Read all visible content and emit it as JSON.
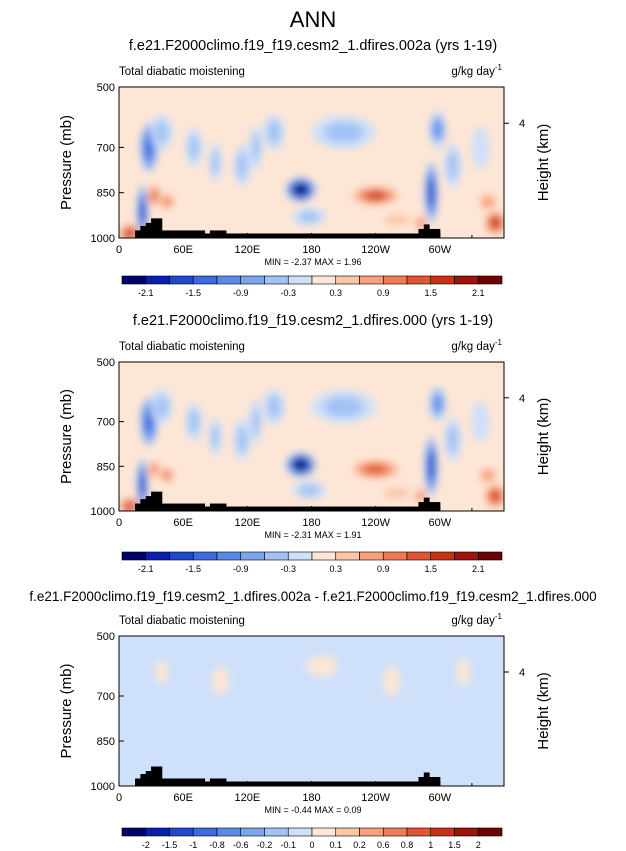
{
  "figure": {
    "title": "ANN",
    "colors": {
      "ink": "#000000",
      "background": "#ffffff",
      "terrain": "#000000"
    }
  },
  "chart_data": [
    {
      "type": "heatmap",
      "title": "f.e21.F2000climo.f19_f19.cesm2_1.dfires.002a (yrs 1-19)",
      "left_label": "Total diabatic moistening",
      "units_label": "g/kg day",
      "units_exponent": "-1",
      "xlabel": "",
      "ylabel": "Pressure (mb)",
      "right_ylabel": "Height (km)",
      "x_ticks": [
        "0",
        "60E",
        "120E",
        "180",
        "120W",
        "60W"
      ],
      "x_tick_lons": [
        0,
        60,
        120,
        180,
        240,
        300
      ],
      "xlim": [
        0,
        360
      ],
      "y_ticks": [
        "500",
        "700",
        "850",
        "1000"
      ],
      "y_tick_values": [
        500,
        700,
        850,
        1000
      ],
      "ylim": [
        500,
        1000
      ],
      "right_ticks": [
        "4"
      ],
      "right_tick_pressure": 620,
      "min_label": "MIN = ",
      "min_value": "-2.37",
      "max_label": "MAX = ",
      "max_value": "1.96",
      "colorbar": {
        "labels": [
          "-2.1",
          "-1.5",
          "-0.9",
          "-0.3",
          "0.3",
          "0.9",
          "1.5",
          "2.1"
        ],
        "levels": [
          -2.1,
          -1.8,
          -1.5,
          -1.2,
          -0.9,
          -0.6,
          -0.3,
          0,
          0.3,
          0.6,
          0.9,
          1.2,
          1.5,
          1.8,
          2.1
        ],
        "colors": [
          "#02006b",
          "#0a1fae",
          "#1f49cc",
          "#3a6be0",
          "#5a8ae8",
          "#7aa6ee",
          "#a2c2f4",
          "#cee0fa",
          "#fde6d6",
          "#fcc6a8",
          "#f8a07c",
          "#f07a56",
          "#e25432",
          "#c93117",
          "#9f130b",
          "#6e0202"
        ]
      },
      "features": [
        {
          "lon": 10,
          "p": 985,
          "value": 1.6,
          "lon_width": 10,
          "p_width": 60
        },
        {
          "lon": 22,
          "p": 910,
          "value": -1.8,
          "lon_width": 5,
          "p_width": 170
        },
        {
          "lon": 28,
          "p": 700,
          "value": -1.5,
          "lon_width": 8,
          "p_width": 160
        },
        {
          "lon": 33,
          "p": 860,
          "value": 1.2,
          "lon_width": 6,
          "p_width": 70
        },
        {
          "lon": 45,
          "p": 880,
          "value": 1.0,
          "lon_width": 8,
          "p_width": 60
        },
        {
          "lon": 40,
          "p": 650,
          "value": -0.6,
          "lon_width": 10,
          "p_width": 120
        },
        {
          "lon": 70,
          "p": 700,
          "value": -0.6,
          "lon_width": 8,
          "p_width": 130
        },
        {
          "lon": 90,
          "p": 750,
          "value": -0.5,
          "lon_width": 6,
          "p_width": 130
        },
        {
          "lon": 115,
          "p": 760,
          "value": -0.6,
          "lon_width": 8,
          "p_width": 140
        },
        {
          "lon": 128,
          "p": 700,
          "value": -0.5,
          "lon_width": 6,
          "p_width": 150
        },
        {
          "lon": 145,
          "p": 650,
          "value": -0.6,
          "lon_width": 10,
          "p_width": 120
        },
        {
          "lon": 170,
          "p": 840,
          "value": -2.3,
          "lon_width": 14,
          "p_width": 80
        },
        {
          "lon": 178,
          "p": 930,
          "value": -0.5,
          "lon_width": 16,
          "p_width": 60
        },
        {
          "lon": 210,
          "p": 650,
          "value": -0.4,
          "lon_width": 30,
          "p_width": 110
        },
        {
          "lon": 240,
          "p": 860,
          "value": 1.5,
          "lon_width": 22,
          "p_width": 60
        },
        {
          "lon": 260,
          "p": 940,
          "value": 0.4,
          "lon_width": 20,
          "p_width": 60
        },
        {
          "lon": 282,
          "p": 950,
          "value": 1.0,
          "lon_width": 6,
          "p_width": 60
        },
        {
          "lon": 292,
          "p": 850,
          "value": -1.8,
          "lon_width": 6,
          "p_width": 200
        },
        {
          "lon": 298,
          "p": 640,
          "value": -1.2,
          "lon_width": 8,
          "p_width": 120
        },
        {
          "lon": 312,
          "p": 760,
          "value": -0.5,
          "lon_width": 8,
          "p_width": 150
        },
        {
          "lon": 338,
          "p": 700,
          "value": -0.3,
          "lon_width": 8,
          "p_width": 140
        },
        {
          "lon": 352,
          "p": 950,
          "value": 1.6,
          "lon_width": 10,
          "p_width": 80
        },
        {
          "lon": 345,
          "p": 880,
          "value": 0.8,
          "lon_width": 10,
          "p_width": 60
        }
      ],
      "terrain": [
        [
          15,
          975
        ],
        [
          20,
          960
        ],
        [
          25,
          950
        ],
        [
          30,
          935
        ],
        [
          35,
          935
        ],
        [
          40,
          975
        ],
        [
          80,
          985
        ],
        [
          85,
          975
        ],
        [
          95,
          975
        ],
        [
          100,
          985
        ],
        [
          280,
          970
        ],
        [
          285,
          955
        ],
        [
          290,
          970
        ],
        [
          300,
          985
        ]
      ]
    },
    {
      "type": "heatmap",
      "title": "f.e21.F2000climo.f19_f19.cesm2_1.dfires.000 (yrs 1-19)",
      "left_label": "Total diabatic moistening",
      "units_label": "g/kg day",
      "units_exponent": "-1",
      "xlabel": "",
      "ylabel": "Pressure (mb)",
      "right_ylabel": "Height (km)",
      "x_ticks": [
        "0",
        "60E",
        "120E",
        "180",
        "120W",
        "60W"
      ],
      "x_tick_lons": [
        0,
        60,
        120,
        180,
        240,
        300
      ],
      "xlim": [
        0,
        360
      ],
      "y_ticks": [
        "500",
        "700",
        "850",
        "1000"
      ],
      "y_tick_values": [
        500,
        700,
        850,
        1000
      ],
      "ylim": [
        500,
        1000
      ],
      "right_ticks": [
        "4"
      ],
      "right_tick_pressure": 620,
      "min_label": "MIN = ",
      "min_value": "-2.31",
      "max_label": "MAX = ",
      "max_value": "1.91",
      "colorbar": {
        "labels": [
          "-2.1",
          "-1.5",
          "-0.9",
          "-0.3",
          "0.3",
          "0.9",
          "1.5",
          "2.1"
        ],
        "levels": [
          -2.1,
          -1.8,
          -1.5,
          -1.2,
          -0.9,
          -0.6,
          -0.3,
          0,
          0.3,
          0.6,
          0.9,
          1.2,
          1.5,
          1.8,
          2.1
        ],
        "colors": [
          "#02006b",
          "#0a1fae",
          "#1f49cc",
          "#3a6be0",
          "#5a8ae8",
          "#7aa6ee",
          "#a2c2f4",
          "#cee0fa",
          "#fde6d6",
          "#fcc6a8",
          "#f8a07c",
          "#f07a56",
          "#e25432",
          "#c93117",
          "#9f130b",
          "#6e0202"
        ]
      },
      "features": [
        {
          "lon": 10,
          "p": 985,
          "value": 1.5,
          "lon_width": 10,
          "p_width": 60
        },
        {
          "lon": 22,
          "p": 910,
          "value": -1.7,
          "lon_width": 5,
          "p_width": 170
        },
        {
          "lon": 28,
          "p": 700,
          "value": -1.5,
          "lon_width": 8,
          "p_width": 160
        },
        {
          "lon": 33,
          "p": 860,
          "value": 1.1,
          "lon_width": 6,
          "p_width": 70
        },
        {
          "lon": 45,
          "p": 880,
          "value": 0.9,
          "lon_width": 8,
          "p_width": 60
        },
        {
          "lon": 40,
          "p": 650,
          "value": -0.6,
          "lon_width": 10,
          "p_width": 120
        },
        {
          "lon": 70,
          "p": 700,
          "value": -0.6,
          "lon_width": 8,
          "p_width": 130
        },
        {
          "lon": 90,
          "p": 750,
          "value": -0.5,
          "lon_width": 6,
          "p_width": 130
        },
        {
          "lon": 115,
          "p": 760,
          "value": -0.6,
          "lon_width": 8,
          "p_width": 140
        },
        {
          "lon": 128,
          "p": 700,
          "value": -0.5,
          "lon_width": 6,
          "p_width": 150
        },
        {
          "lon": 145,
          "p": 650,
          "value": -0.6,
          "lon_width": 10,
          "p_width": 120
        },
        {
          "lon": 170,
          "p": 845,
          "value": -2.2,
          "lon_width": 14,
          "p_width": 80
        },
        {
          "lon": 178,
          "p": 930,
          "value": -0.5,
          "lon_width": 16,
          "p_width": 60
        },
        {
          "lon": 210,
          "p": 650,
          "value": -0.4,
          "lon_width": 30,
          "p_width": 110
        },
        {
          "lon": 240,
          "p": 860,
          "value": 1.4,
          "lon_width": 22,
          "p_width": 60
        },
        {
          "lon": 260,
          "p": 940,
          "value": 0.4,
          "lon_width": 20,
          "p_width": 60
        },
        {
          "lon": 282,
          "p": 950,
          "value": 1.0,
          "lon_width": 6,
          "p_width": 60
        },
        {
          "lon": 292,
          "p": 850,
          "value": -1.7,
          "lon_width": 6,
          "p_width": 200
        },
        {
          "lon": 298,
          "p": 640,
          "value": -1.2,
          "lon_width": 8,
          "p_width": 120
        },
        {
          "lon": 312,
          "p": 760,
          "value": -0.5,
          "lon_width": 8,
          "p_width": 150
        },
        {
          "lon": 338,
          "p": 700,
          "value": -0.3,
          "lon_width": 8,
          "p_width": 140
        },
        {
          "lon": 352,
          "p": 950,
          "value": 1.5,
          "lon_width": 10,
          "p_width": 80
        },
        {
          "lon": 345,
          "p": 880,
          "value": 0.8,
          "lon_width": 10,
          "p_width": 60
        }
      ],
      "terrain": [
        [
          15,
          975
        ],
        [
          20,
          960
        ],
        [
          25,
          950
        ],
        [
          30,
          935
        ],
        [
          35,
          935
        ],
        [
          40,
          975
        ],
        [
          80,
          985
        ],
        [
          85,
          975
        ],
        [
          95,
          975
        ],
        [
          100,
          985
        ],
        [
          280,
          970
        ],
        [
          285,
          955
        ],
        [
          290,
          970
        ],
        [
          300,
          985
        ]
      ]
    },
    {
      "type": "heatmap",
      "title": "f.e21.F2000climo.f19_f19.cesm2_1.dfires.002a - f.e21.F2000climo.f19_f19.cesm2_1.dfires.000",
      "left_label": "Total diabatic moistening",
      "units_label": "g/kg day",
      "units_exponent": "-1",
      "xlabel": "",
      "ylabel": "Pressure (mb)",
      "right_ylabel": "Height (km)",
      "x_ticks": [
        "0",
        "60E",
        "120E",
        "180",
        "120W",
        "60W"
      ],
      "x_tick_lons": [
        0,
        60,
        120,
        180,
        240,
        300
      ],
      "xlim": [
        0,
        360
      ],
      "y_ticks": [
        "500",
        "700",
        "850",
        "1000"
      ],
      "y_tick_values": [
        500,
        700,
        850,
        1000
      ],
      "ylim": [
        500,
        1000
      ],
      "right_ticks": [
        "4"
      ],
      "right_tick_pressure": 620,
      "min_label": "MIN = ",
      "min_value": "-0.44",
      "max_label": "MAX = ",
      "max_value": "0.09",
      "colorbar": {
        "labels": [
          "-2",
          "-1.5",
          "-1",
          "-0.8",
          "-0.6",
          "-0.2",
          "-0.1",
          "0",
          "0.1",
          "0.2",
          "0.6",
          "0.8",
          "1",
          "1.5",
          "2"
        ],
        "levels": [
          -2,
          -1.5,
          -1,
          -0.8,
          -0.6,
          -0.2,
          -0.1,
          0,
          0.1,
          0.2,
          0.6,
          0.8,
          1,
          1.5,
          2
        ],
        "colors": [
          "#02006b",
          "#0a1fae",
          "#1f49cc",
          "#3a6be0",
          "#5a8ae8",
          "#7aa6ee",
          "#a2c2f4",
          "#cee0fa",
          "#fde6d6",
          "#fcc6a8",
          "#f8a07c",
          "#f07a56",
          "#e25432",
          "#c93117",
          "#9f130b",
          "#6e0202"
        ]
      },
      "features": [
        {
          "lon": 10,
          "p": 700,
          "value": -0.03,
          "lon_width": 8,
          "p_width": 150
        },
        {
          "lon": 40,
          "p": 620,
          "value": 0.03,
          "lon_width": 6,
          "p_width": 80
        },
        {
          "lon": 60,
          "p": 780,
          "value": -0.04,
          "lon_width": 12,
          "p_width": 200
        },
        {
          "lon": 95,
          "p": 650,
          "value": 0.03,
          "lon_width": 8,
          "p_width": 90
        },
        {
          "lon": 150,
          "p": 720,
          "value": -0.04,
          "lon_width": 20,
          "p_width": 180
        },
        {
          "lon": 190,
          "p": 600,
          "value": 0.02,
          "lon_width": 15,
          "p_width": 70
        },
        {
          "lon": 220,
          "p": 800,
          "value": -0.03,
          "lon_width": 18,
          "p_width": 160
        },
        {
          "lon": 255,
          "p": 650,
          "value": 0.03,
          "lon_width": 8,
          "p_width": 100
        },
        {
          "lon": 280,
          "p": 740,
          "value": -0.03,
          "lon_width": 10,
          "p_width": 180
        },
        {
          "lon": 305,
          "p": 820,
          "value": -0.04,
          "lon_width": 8,
          "p_width": 150
        },
        {
          "lon": 322,
          "p": 620,
          "value": 0.03,
          "lon_width": 6,
          "p_width": 100
        },
        {
          "lon": 345,
          "p": 740,
          "value": -0.03,
          "lon_width": 12,
          "p_width": 200
        }
      ],
      "terrain": [
        [
          15,
          975
        ],
        [
          20,
          960
        ],
        [
          25,
          950
        ],
        [
          30,
          935
        ],
        [
          35,
          935
        ],
        [
          40,
          975
        ],
        [
          80,
          985
        ],
        [
          85,
          975
        ],
        [
          95,
          975
        ],
        [
          100,
          985
        ],
        [
          280,
          970
        ],
        [
          285,
          955
        ],
        [
          290,
          970
        ],
        [
          300,
          985
        ]
      ]
    }
  ]
}
